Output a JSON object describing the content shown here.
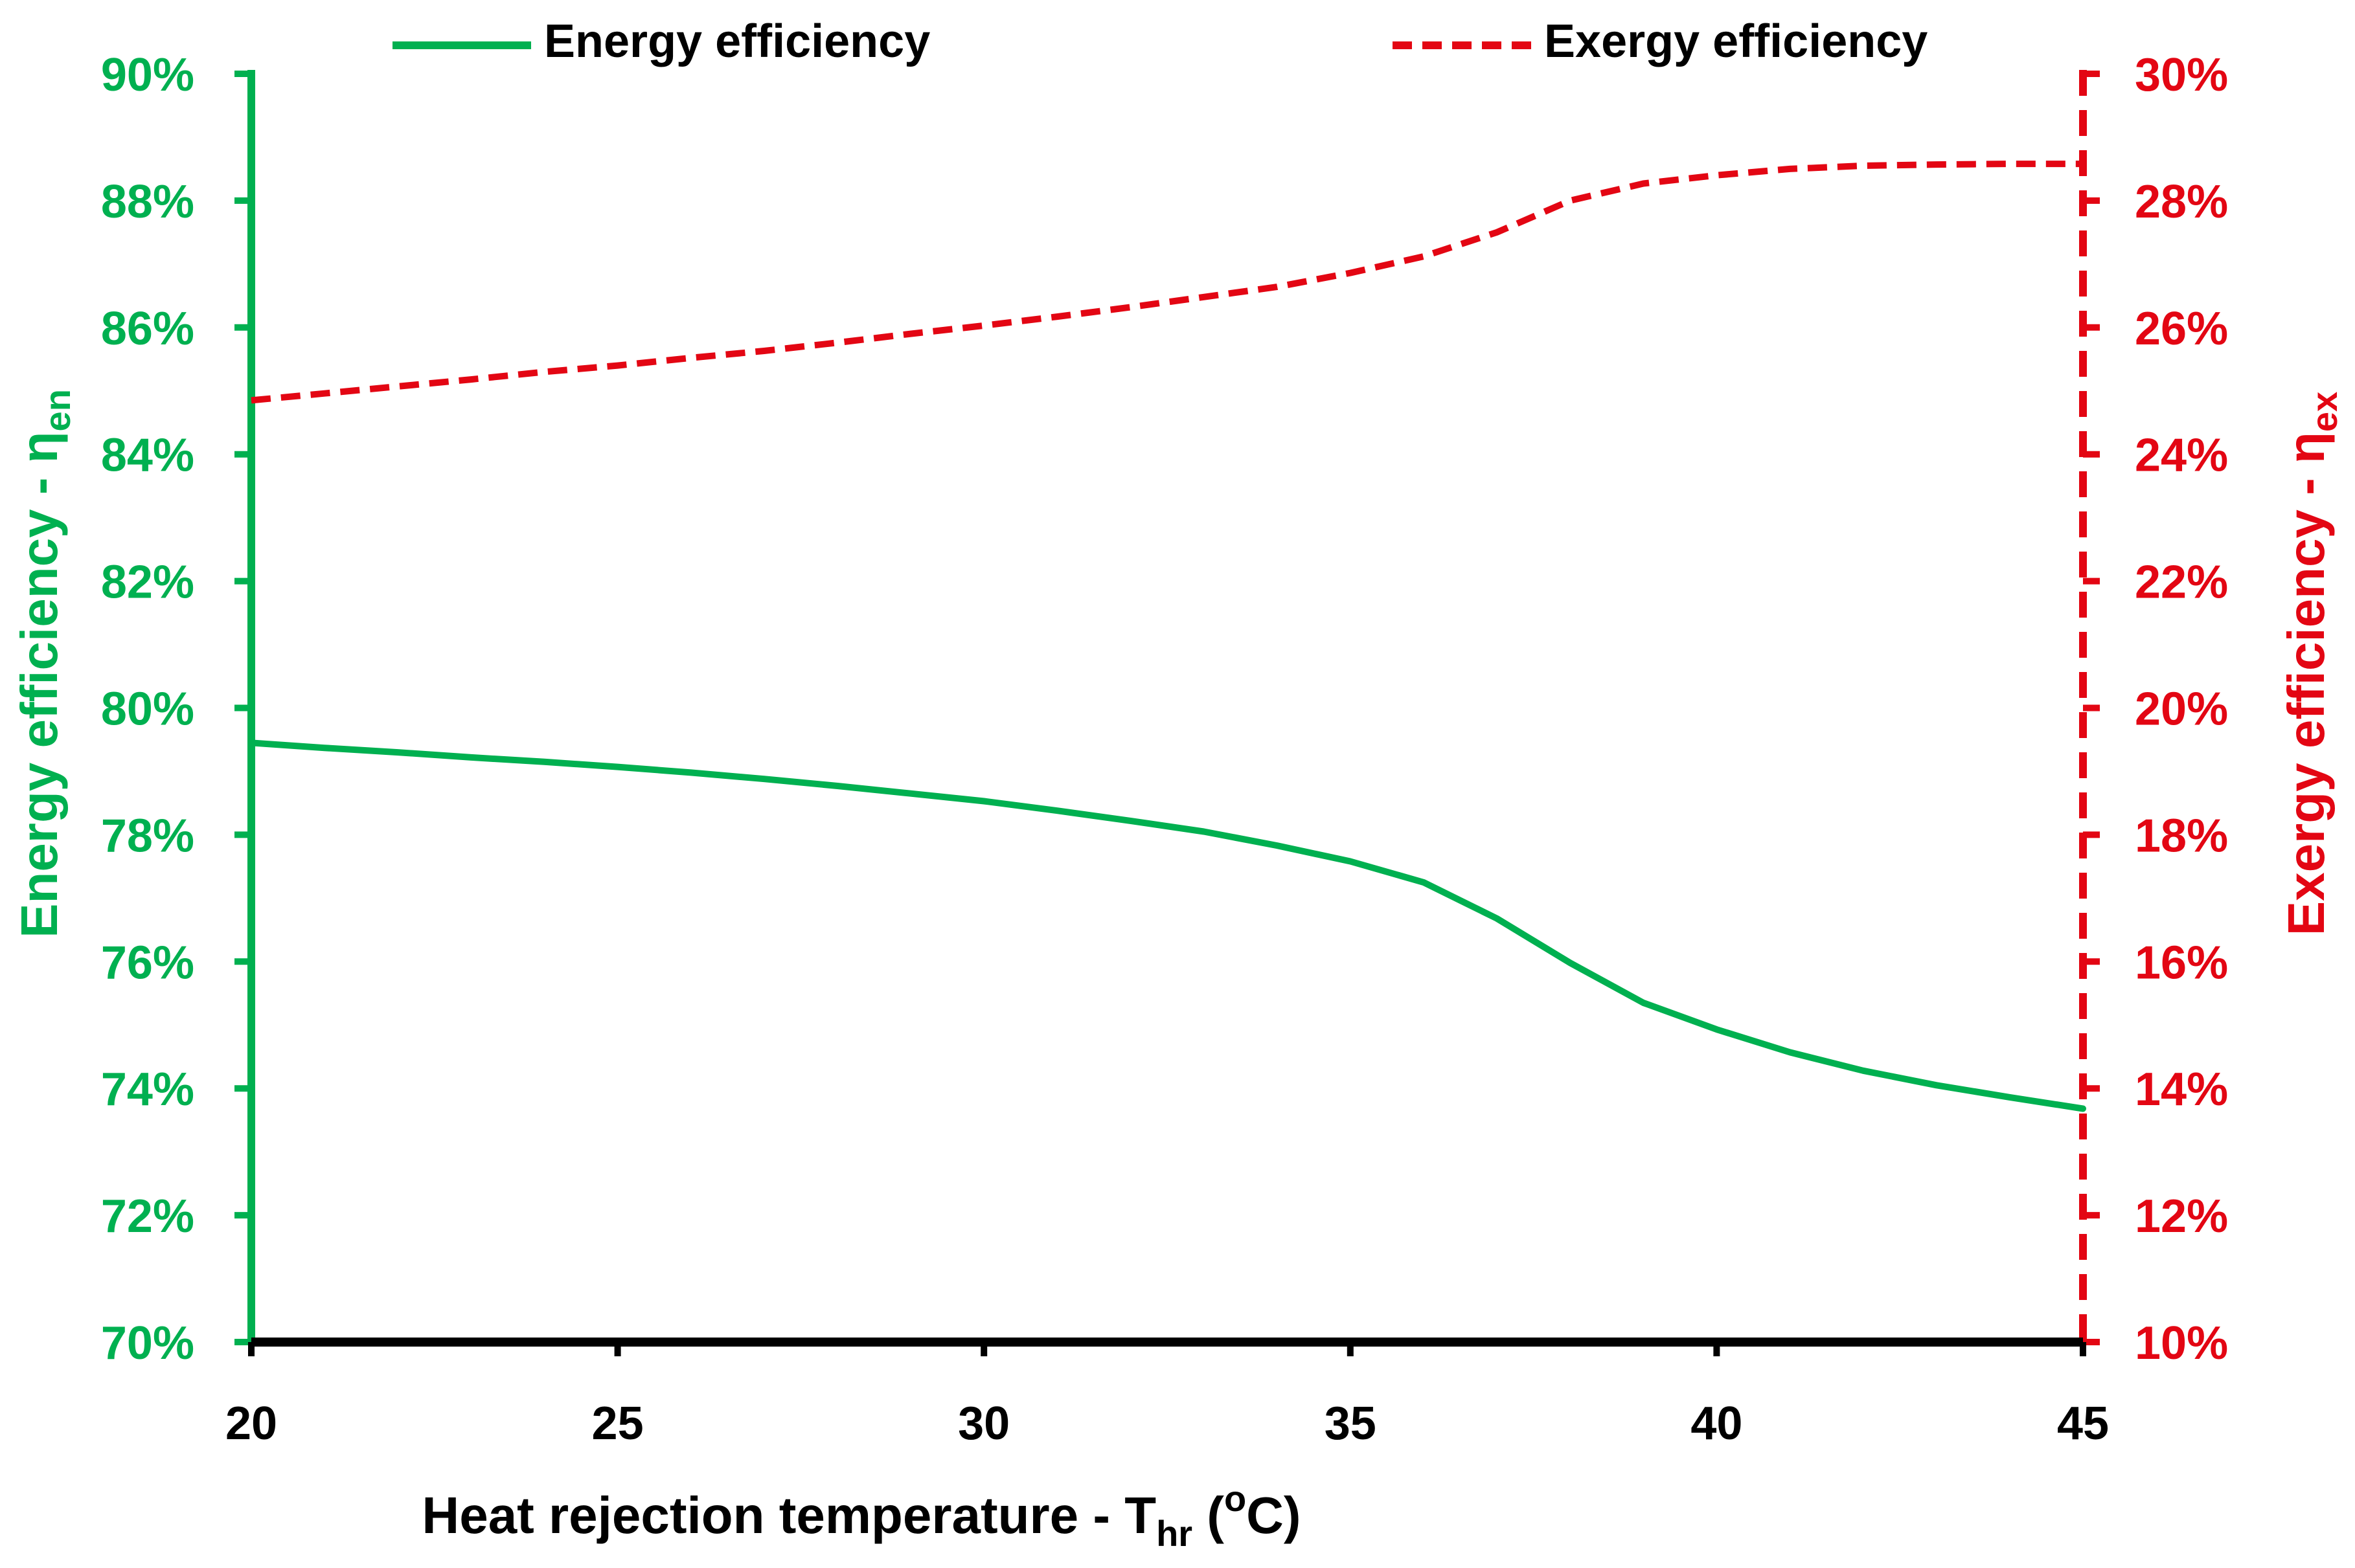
{
  "chart_data": {
    "type": "line",
    "title": "",
    "xlabel": {
      "main": "Heat rejection temperature - T",
      "sub": "hr",
      "open": " (",
      "sup": "o",
      "unit": "C)"
    },
    "ylabel_left": {
      "main": "Energy efficiency - η",
      "sub": "en"
    },
    "ylabel_right": {
      "main": "Exergy efficiency - η",
      "sub": "ex"
    },
    "x": [
      20,
      21,
      22,
      23,
      24,
      25,
      26,
      27,
      28,
      29,
      30,
      31,
      32,
      33,
      34,
      35,
      36,
      37,
      38,
      39,
      40,
      41,
      42,
      43,
      44,
      45
    ],
    "xlim": [
      20,
      45
    ],
    "x_ticks": [
      "20",
      "25",
      "30",
      "35",
      "40",
      "45"
    ],
    "ylim_left": [
      0.7,
      0.9
    ],
    "ylim_right": [
      0.1,
      0.3
    ],
    "y_ticks_left": [
      "70%",
      "72%",
      "74%",
      "76%",
      "78%",
      "80%",
      "82%",
      "84%",
      "86%",
      "88%",
      "90%"
    ],
    "y_ticks_right": [
      "10%",
      "12%",
      "14%",
      "16%",
      "18%",
      "20%",
      "22%",
      "24%",
      "26%",
      "28%",
      "30%"
    ],
    "series": [
      {
        "name": "Energy efficiency",
        "axis": "left",
        "style": "solid",
        "color": "#00b050",
        "values": [
          0.7945,
          0.7937,
          0.793,
          0.7922,
          0.7915,
          0.7907,
          0.7898,
          0.7888,
          0.7877,
          0.7865,
          0.7853,
          0.7838,
          0.7822,
          0.7805,
          0.7783,
          0.7758,
          0.7725,
          0.7668,
          0.7598,
          0.7535,
          0.7493,
          0.7457,
          0.7428,
          0.7405,
          0.7386,
          0.7368
        ]
      },
      {
        "name": "Exergy efficiency",
        "axis": "right",
        "style": "dashed",
        "color": "#e30613",
        "values": [
          0.2485,
          0.2496,
          0.2507,
          0.2518,
          0.253,
          0.254,
          0.2552,
          0.2563,
          0.2576,
          0.259,
          0.2603,
          0.2617,
          0.2632,
          0.2648,
          0.2664,
          0.2686,
          0.2712,
          0.275,
          0.28,
          0.2827,
          0.284,
          0.285,
          0.2855,
          0.2857,
          0.2858,
          0.2858
        ]
      }
    ],
    "legend": {
      "placement": "top"
    }
  }
}
